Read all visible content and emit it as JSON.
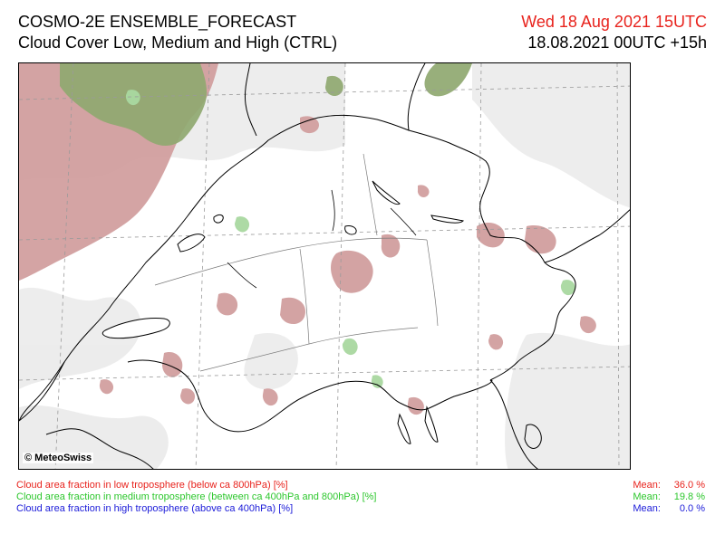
{
  "header": {
    "title": "COSMO-2E ENSEMBLE_FORECAST",
    "subtitle": "Cloud Cover Low, Medium and High (CTRL)",
    "valid_time": "Wed 18 Aug 2021 15UTC",
    "run_time": "18.08.2021 00UTC +15h"
  },
  "map": {
    "copyright": "© MeteoSwiss"
  },
  "legend": {
    "low": "Cloud area fraction in low troposphere (below ca 800hPa) [%]",
    "medium": "Cloud area fraction in medium troposphere (between ca 400hPa and 800hPa) [%]",
    "high": "Cloud area fraction in high troposphere (above ca 400hPa) [%]"
  },
  "means": {
    "label": "Mean:",
    "low": "36.0 %",
    "medium": "19.8 %",
    "high": "0.0 %"
  },
  "colors": {
    "low": "#e8231d",
    "medium": "#2dc72d",
    "high": "#1b1bd9",
    "low_fill": "#cf9a9a",
    "medium_fill": "#8fa870",
    "thin_fill": "#e8e8e8"
  }
}
